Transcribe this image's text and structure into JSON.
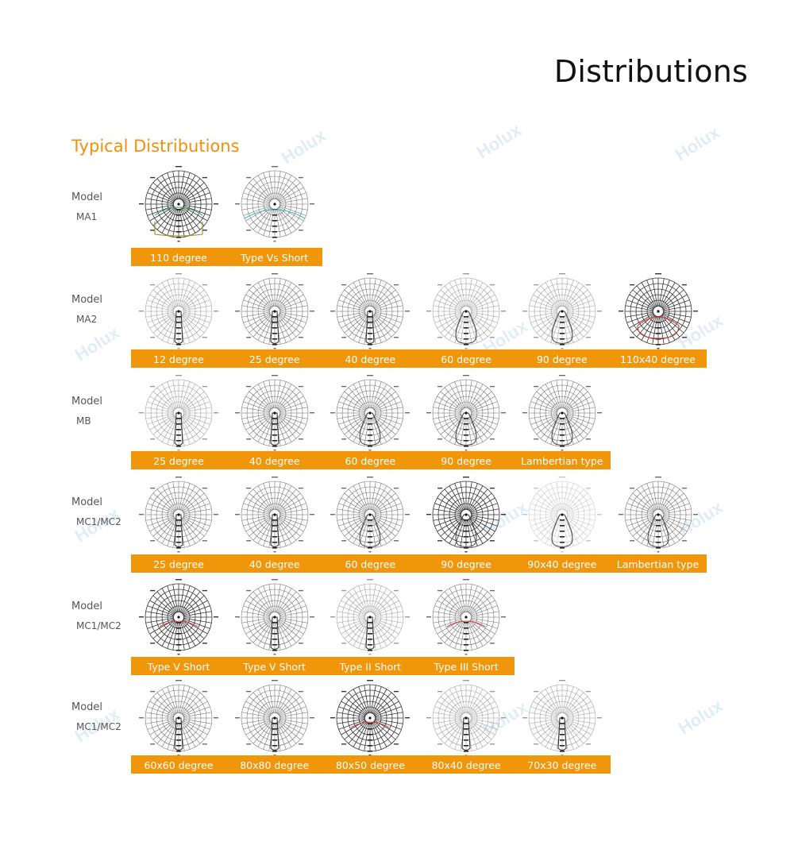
{
  "page": {
    "title": "Distributions",
    "section_title": "Typical Distributions",
    "watermark_text": "Holux"
  },
  "colors": {
    "accent": "#f0960a",
    "heading_orange": "#f0900a",
    "polar_grid": "#777777",
    "curve_green": "#2fae5a",
    "curve_red": "#d23a3a",
    "curve_cyan": "#3ab4d0",
    "curve_olive": "#a08a1a"
  },
  "models": [
    {
      "label": "Model",
      "code": "MA1",
      "diagrams": [
        {
          "label": "110 degree",
          "style": "dark",
          "curve": "wide-green"
        },
        {
          "label": "Type Vs Short",
          "style": "normal",
          "curve": "cyan"
        }
      ]
    },
    {
      "label": "Model",
      "code": "MA2",
      "diagrams": [
        {
          "label": "12 degree",
          "style": "light",
          "curve": "narrow"
        },
        {
          "label": "25 degree",
          "style": "normal",
          "curve": "narrow"
        },
        {
          "label": "40 degree",
          "style": "normal",
          "curve": "narrow"
        },
        {
          "label": "60 degree",
          "style": "light",
          "curve": "medium"
        },
        {
          "label": "90 degree",
          "style": "light",
          "curve": "medium"
        },
        {
          "label": "110x40 degree",
          "style": "dark",
          "curve": "wide-red"
        }
      ]
    },
    {
      "label": "Model",
      "code": "MB",
      "diagrams": [
        {
          "label": "25 degree",
          "style": "light",
          "curve": "narrow"
        },
        {
          "label": "40 degree",
          "style": "normal",
          "curve": "narrow"
        },
        {
          "label": "60 degree",
          "style": "normal",
          "curve": "medium"
        },
        {
          "label": "90 degree",
          "style": "normal",
          "curve": "medium"
        },
        {
          "label": "Lambertian type",
          "style": "normal",
          "curve": "medium"
        }
      ]
    },
    {
      "label": "Model",
      "code": "MC1/MC2",
      "diagrams": [
        {
          "label": "25 degree",
          "style": "normal",
          "curve": "narrow"
        },
        {
          "label": "40 degree",
          "style": "normal",
          "curve": "narrow"
        },
        {
          "label": "60 degree",
          "style": "normal",
          "curve": "medium"
        },
        {
          "label": "90 degree",
          "style": "dark",
          "curve": "medium"
        },
        {
          "label": "90x40 degree",
          "style": "faint",
          "curve": "medium"
        },
        {
          "label": "Lambertian type",
          "style": "normal",
          "curve": "medium"
        }
      ]
    },
    {
      "label": "Model",
      "code": "MC1/MC2",
      "diagrams": [
        {
          "label": "Type V Short",
          "style": "dark",
          "curve": "red"
        },
        {
          "label": "Type V Short",
          "style": "normal",
          "curve": "narrow"
        },
        {
          "label": "Type II Short",
          "style": "light",
          "curve": "narrow"
        },
        {
          "label": "Type III Short",
          "style": "normal",
          "curve": "red"
        }
      ]
    },
    {
      "label": "Model",
      "code": "MC1/MC2",
      "diagrams": [
        {
          "label": "60x60 degree",
          "style": "normal",
          "curve": "narrow"
        },
        {
          "label": "80x80 degree",
          "style": "normal",
          "curve": "narrow"
        },
        {
          "label": "80x50 degree",
          "style": "dark",
          "curve": "red"
        },
        {
          "label": "80x40 degree",
          "style": "light",
          "curve": "narrow"
        },
        {
          "label": "70x30 degree",
          "style": "light",
          "curve": "narrow"
        }
      ]
    }
  ]
}
